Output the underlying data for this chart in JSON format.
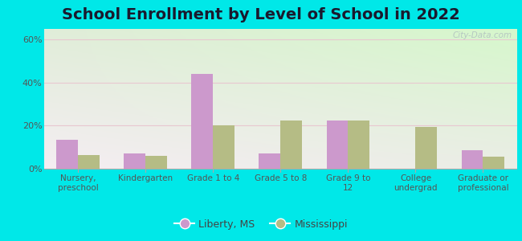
{
  "title": "School Enrollment by Level of School in 2022",
  "categories": [
    "Nursery,\npreschool",
    "Kindergarten",
    "Grade 1 to 4",
    "Grade 5 to 8",
    "Grade 9 to\n12",
    "College\nundergrad",
    "Graduate or\nprofessional"
  ],
  "liberty_ms": [
    13.5,
    7.0,
    44.0,
    7.0,
    22.5,
    0.0,
    8.5
  ],
  "mississippi": [
    6.5,
    6.0,
    20.0,
    22.5,
    22.5,
    19.5,
    5.5
  ],
  "liberty_color": "#cc99cc",
  "mississippi_color": "#b5bc85",
  "background_outer": "#00e8e8",
  "ylim": [
    0,
    65
  ],
  "yticks": [
    0,
    20,
    40,
    60
  ],
  "ytick_labels": [
    "0%",
    "20%",
    "40%",
    "60%"
  ],
  "title_fontsize": 14,
  "watermark": "City-Data.com",
  "bar_width": 0.32
}
